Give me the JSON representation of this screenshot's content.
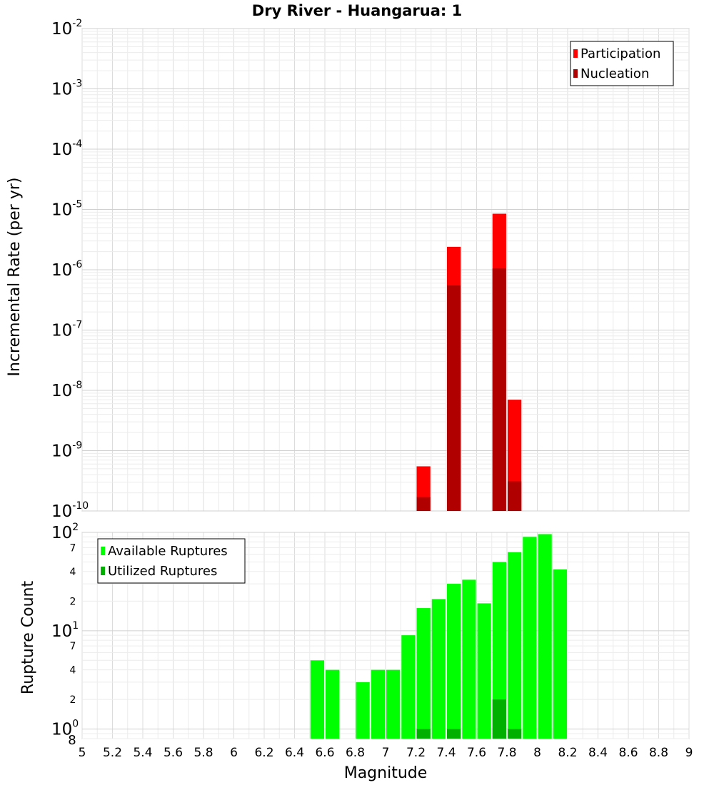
{
  "chart_data": [
    {
      "type": "bar",
      "title": "Dry River - Huangarua: 1",
      "xlabel": "Magnitude",
      "ylabel": "Incremental Rate (per yr)",
      "yscale": "log",
      "ylim": [
        1e-10,
        0.01
      ],
      "xlim": [
        5,
        9
      ],
      "y_ticks": [
        {
          "base": "10",
          "exp": "-10"
        },
        {
          "base": "10",
          "exp": "-9"
        },
        {
          "base": "10",
          "exp": "-8"
        },
        {
          "base": "10",
          "exp": "-7"
        },
        {
          "base": "10",
          "exp": "-6"
        },
        {
          "base": "10",
          "exp": "-5"
        },
        {
          "base": "10",
          "exp": "-4"
        },
        {
          "base": "10",
          "exp": "-3"
        },
        {
          "base": "10",
          "exp": "-2"
        }
      ],
      "legend_position": "top-right",
      "series": [
        {
          "name": "Participation",
          "color": "#ff0000",
          "points": [
            {
              "x": 7.25,
              "y": 5.5e-10
            },
            {
              "x": 7.45,
              "y": 2.4e-06
            },
            {
              "x": 7.75,
              "y": 8.5e-06
            },
            {
              "x": 7.85,
              "y": 7e-09
            }
          ]
        },
        {
          "name": "Nucleation",
          "color": "#b00000",
          "points": [
            {
              "x": 7.25,
              "y": 1.7e-10
            },
            {
              "x": 7.45,
              "y": 5.5e-07
            },
            {
              "x": 7.75,
              "y": 1.05e-06
            },
            {
              "x": 7.85,
              "y": 3.1e-10
            }
          ]
        }
      ]
    },
    {
      "type": "bar",
      "xlabel": "Magnitude",
      "ylabel": "Rupture Count",
      "yscale": "log",
      "ylim": [
        0.8,
        100
      ],
      "xlim": [
        5,
        9
      ],
      "x_ticks": [
        "5",
        "5.2",
        "5.4",
        "5.6",
        "5.8",
        "6",
        "6.2",
        "6.4",
        "6.6",
        "6.8",
        "7",
        "7.2",
        "7.4",
        "7.6",
        "7.8",
        "8",
        "8.2",
        "8.4",
        "8.6",
        "8.8",
        "9"
      ],
      "y_ticks": [
        {
          "base": "10",
          "exp": "0"
        },
        {
          "base": "10",
          "exp": "1"
        },
        {
          "base": "10",
          "exp": "2"
        }
      ],
      "y_minor_ticks": [
        "2",
        "4",
        "7",
        "2",
        "4",
        "7"
      ],
      "y_bottom_label": "8",
      "legend_position": "top-left",
      "series": [
        {
          "name": "Available Ruptures",
          "color": "#00ff00",
          "points": [
            {
              "x": 6.55,
              "y": 5
            },
            {
              "x": 6.65,
              "y": 4
            },
            {
              "x": 6.85,
              "y": 3
            },
            {
              "x": 6.95,
              "y": 4
            },
            {
              "x": 7.05,
              "y": 4
            },
            {
              "x": 7.15,
              "y": 9
            },
            {
              "x": 7.25,
              "y": 17
            },
            {
              "x": 7.35,
              "y": 21
            },
            {
              "x": 7.45,
              "y": 30
            },
            {
              "x": 7.55,
              "y": 33
            },
            {
              "x": 7.65,
              "y": 19
            },
            {
              "x": 7.75,
              "y": 50
            },
            {
              "x": 7.85,
              "y": 63
            },
            {
              "x": 7.95,
              "y": 90
            },
            {
              "x": 8.05,
              "y": 96
            },
            {
              "x": 8.15,
              "y": 42
            }
          ]
        },
        {
          "name": "Utilized Ruptures",
          "color": "#00b000",
          "points": [
            {
              "x": 7.25,
              "y": 1
            },
            {
              "x": 7.45,
              "y": 1
            },
            {
              "x": 7.75,
              "y": 2
            },
            {
              "x": 7.85,
              "y": 1
            }
          ]
        }
      ]
    }
  ]
}
